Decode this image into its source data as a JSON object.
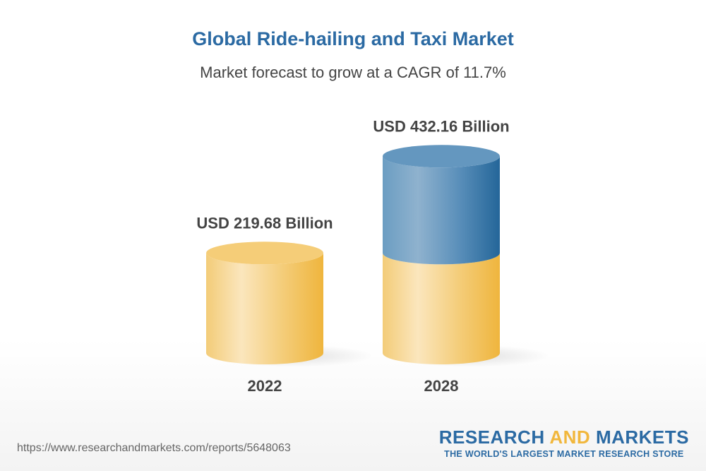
{
  "title": "Global Ride-hailing and Taxi Market",
  "subtitle": "Market forecast to grow at a CAGR of 11.7%",
  "chart_data": {
    "type": "bar",
    "style": "3d-cylinder",
    "title": "Global Ride-hailing and Taxi Market",
    "subtitle": "Market forecast to grow at a CAGR of 11.7%",
    "categories": [
      "2022",
      "2028"
    ],
    "values": [
      219.68,
      432.16
    ],
    "value_labels": [
      "USD 219.68 Billion",
      "USD 432.16 Billion"
    ],
    "unit": "USD Billion",
    "cagr": "11.7%",
    "colors": {
      "base": "#f1b73c",
      "growth": "#2b6aa3"
    }
  },
  "footer": {
    "url": "https://www.researchandmarkets.com/reports/5648063",
    "logo_part1": "RESEARCH ",
    "logo_and": "AND",
    "logo_part2": " MARKETS",
    "tagline": "THE WORLD'S LARGEST MARKET RESEARCH STORE"
  }
}
